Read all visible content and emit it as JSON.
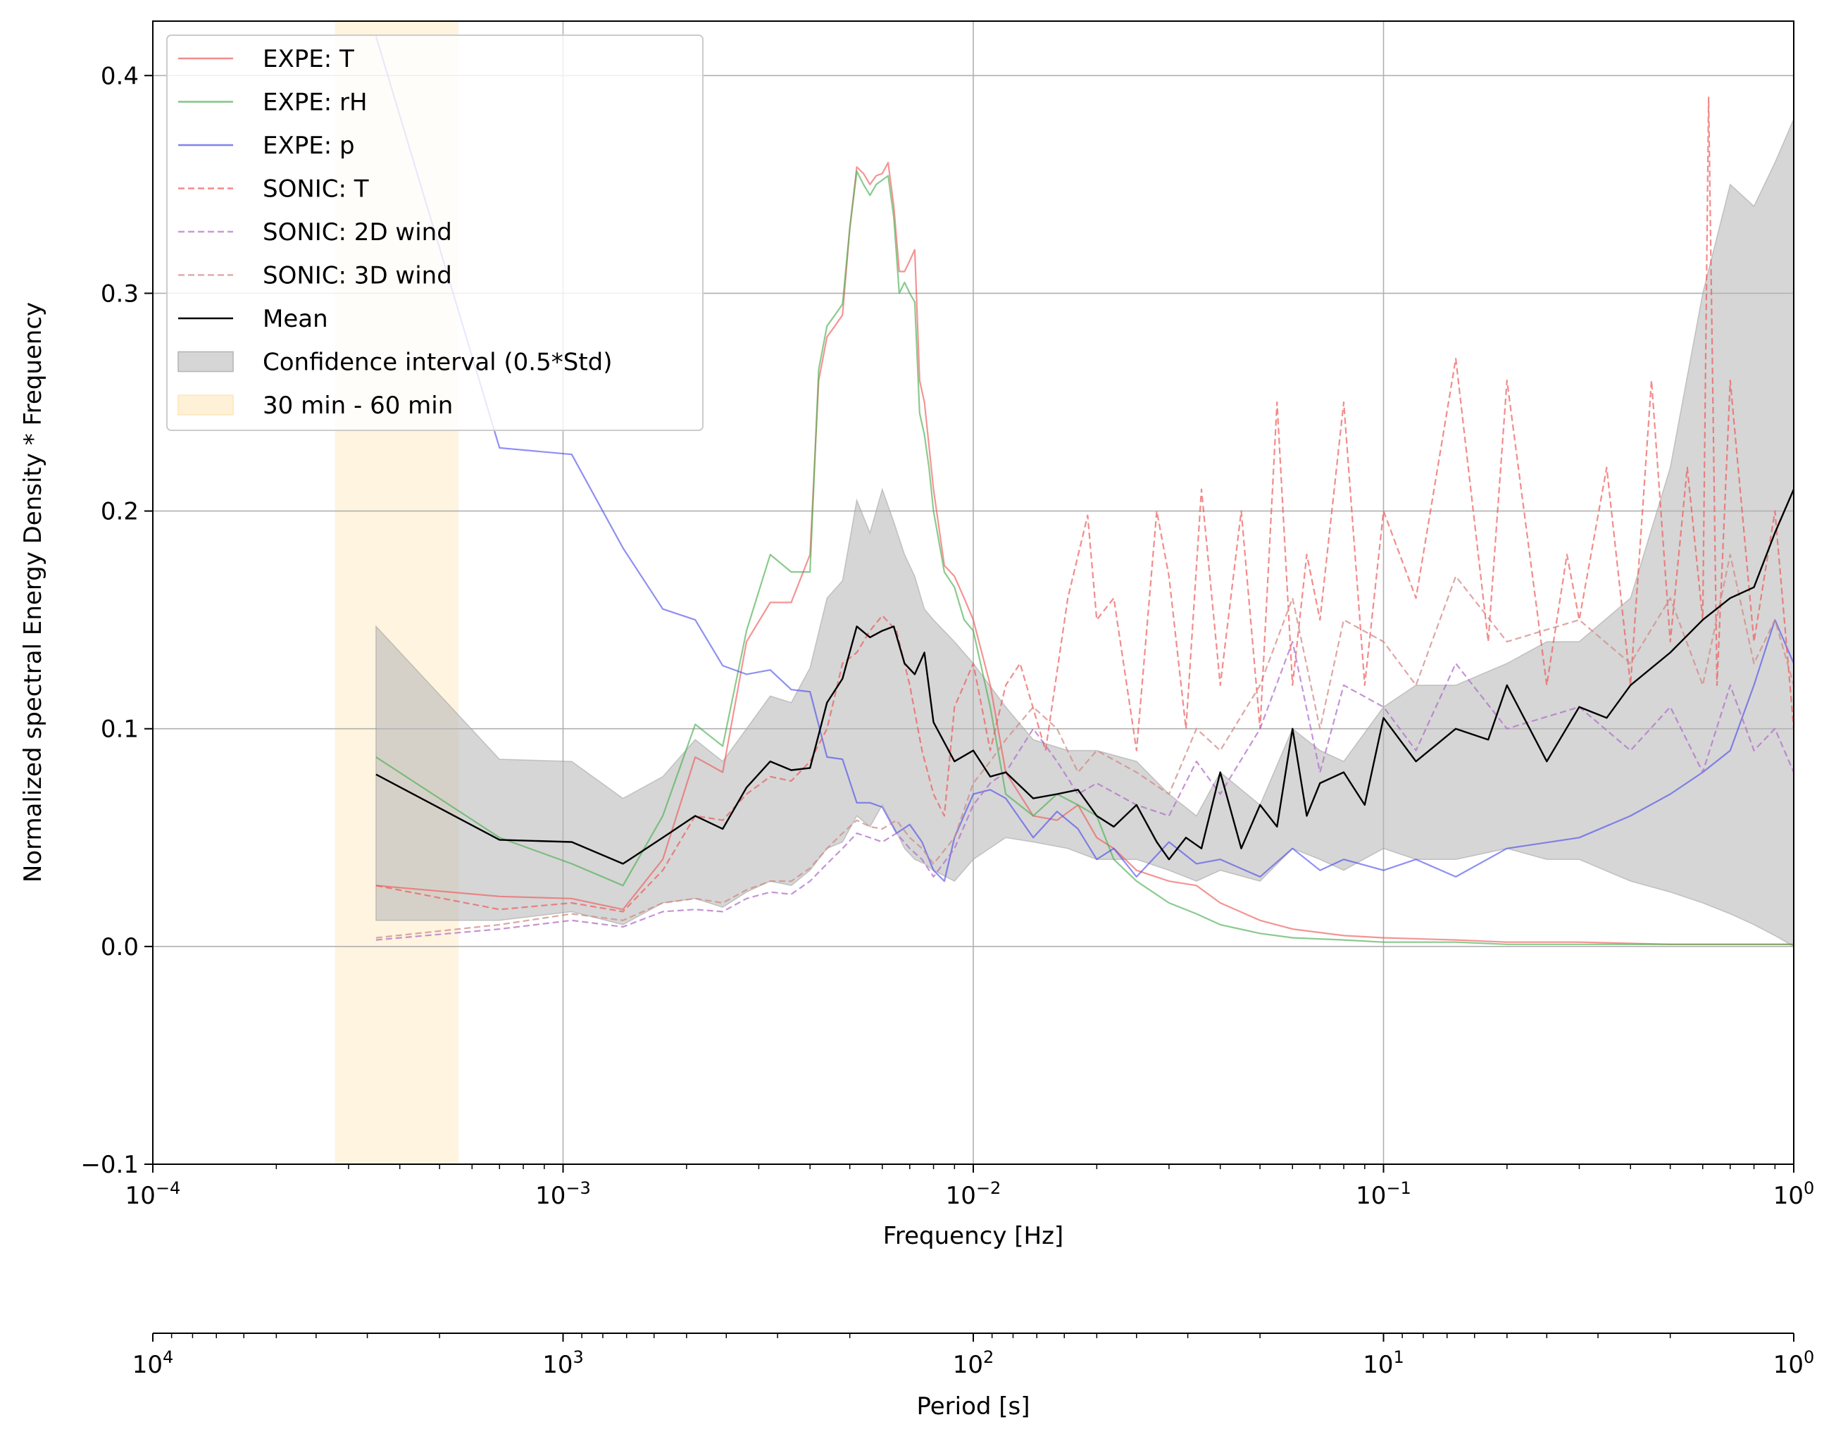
{
  "chart_data": {
    "type": "line",
    "xlabel": "Frequency [Hz]",
    "ylabel": "Normalized spectral Energy Density * Frequency",
    "x_scale": "log",
    "xlim": [
      0.0001,
      1
    ],
    "ylim": [
      -0.1,
      0.425
    ],
    "grid": true,
    "legend_position": "top-left",
    "x_ticks": [
      {
        "value": 0.0001,
        "base": "10",
        "exp": "−4"
      },
      {
        "value": 0.001,
        "base": "10",
        "exp": "−3"
      },
      {
        "value": 0.01,
        "base": "10",
        "exp": "−2"
      },
      {
        "value": 0.1,
        "base": "10",
        "exp": "−1"
      },
      {
        "value": 1,
        "base": "10",
        "exp": "0"
      }
    ],
    "y_ticks": [
      {
        "value": -0.1,
        "label": "−0.1"
      },
      {
        "value": 0.0,
        "label": "0.0"
      },
      {
        "value": 0.1,
        "label": "0.1"
      },
      {
        "value": 0.2,
        "label": "0.2"
      },
      {
        "value": 0.3,
        "label": "0.3"
      },
      {
        "value": 0.4,
        "label": "0.4"
      }
    ],
    "secondary_axis": {
      "label": "Period [s]",
      "scale": "log",
      "ticks": [
        {
          "value": 10000,
          "base": "10",
          "exp": "4"
        },
        {
          "value": 1000,
          "base": "10",
          "exp": "3"
        },
        {
          "value": 100,
          "base": "10",
          "exp": "2"
        },
        {
          "value": 10,
          "base": "10",
          "exp": "1"
        },
        {
          "value": 1,
          "base": "10",
          "exp": "0"
        }
      ]
    },
    "shaded_band": {
      "name": "30 min - 60 min",
      "x_range": [
        0.000278,
        0.000556
      ],
      "color": "#fde6b8"
    },
    "confidence_band": {
      "name": "Confidence interval (0.5*Std)",
      "color": "#b4b4b4",
      "x": [
        0.00035,
        0.0007,
        0.00105,
        0.0014,
        0.00175,
        0.0021,
        0.00245,
        0.0028,
        0.0032,
        0.0036,
        0.004,
        0.0044,
        0.0048,
        0.0052,
        0.0056,
        0.006,
        0.0064,
        0.0068,
        0.0072,
        0.0076,
        0.008,
        0.009,
        0.01,
        0.012,
        0.014,
        0.017,
        0.02,
        0.025,
        0.03,
        0.035,
        0.04,
        0.05,
        0.06,
        0.07,
        0.08,
        0.1,
        0.12,
        0.15,
        0.2,
        0.25,
        0.3,
        0.4,
        0.5,
        0.6,
        0.7,
        0.8,
        0.9,
        1.0
      ],
      "upper": [
        0.147,
        0.086,
        0.085,
        0.068,
        0.078,
        0.095,
        0.085,
        0.1,
        0.115,
        0.112,
        0.128,
        0.16,
        0.168,
        0.205,
        0.19,
        0.21,
        0.195,
        0.18,
        0.17,
        0.155,
        0.15,
        0.14,
        0.13,
        0.11,
        0.095,
        0.09,
        0.09,
        0.085,
        0.07,
        0.06,
        0.08,
        0.065,
        0.1,
        0.09,
        0.085,
        0.11,
        0.12,
        0.12,
        0.13,
        0.14,
        0.14,
        0.16,
        0.22,
        0.3,
        0.35,
        0.34,
        0.36,
        0.38
      ],
      "lower": [
        0.012,
        0.012,
        0.016,
        0.01,
        0.02,
        0.022,
        0.018,
        0.025,
        0.03,
        0.028,
        0.035,
        0.045,
        0.048,
        0.06,
        0.055,
        0.065,
        0.055,
        0.045,
        0.04,
        0.038,
        0.035,
        0.03,
        0.04,
        0.05,
        0.048,
        0.045,
        0.04,
        0.04,
        0.035,
        0.03,
        0.035,
        0.03,
        0.045,
        0.04,
        0.035,
        0.045,
        0.04,
        0.04,
        0.045,
        0.04,
        0.04,
        0.03,
        0.025,
        0.02,
        0.015,
        0.01,
        0.005,
        0.0
      ]
    },
    "series": [
      {
        "name": "EXPE: T",
        "color": "#ee5a5a",
        "dash": false,
        "opacity": 0.65,
        "width": 2.2,
        "x": [
          0.00035,
          0.0007,
          0.00105,
          0.0014,
          0.00175,
          0.0021,
          0.00245,
          0.0028,
          0.0032,
          0.0036,
          0.004,
          0.0042,
          0.0044,
          0.0046,
          0.0048,
          0.005,
          0.0052,
          0.0054,
          0.0056,
          0.0058,
          0.006,
          0.0062,
          0.0064,
          0.0066,
          0.0068,
          0.007,
          0.0072,
          0.0074,
          0.0076,
          0.0078,
          0.008,
          0.0085,
          0.009,
          0.0095,
          0.01,
          0.011,
          0.012,
          0.014,
          0.016,
          0.018,
          0.02,
          0.022,
          0.025,
          0.03,
          0.035,
          0.04,
          0.05,
          0.06,
          0.08,
          0.1,
          0.15,
          0.2,
          0.3,
          0.5,
          0.7,
          1.0
        ],
        "y": [
          0.028,
          0.023,
          0.022,
          0.017,
          0.04,
          0.087,
          0.08,
          0.14,
          0.158,
          0.158,
          0.18,
          0.26,
          0.28,
          0.285,
          0.29,
          0.33,
          0.358,
          0.355,
          0.35,
          0.354,
          0.355,
          0.36,
          0.34,
          0.31,
          0.31,
          0.315,
          0.32,
          0.26,
          0.25,
          0.23,
          0.21,
          0.175,
          0.17,
          0.16,
          0.15,
          0.12,
          0.08,
          0.06,
          0.058,
          0.065,
          0.05,
          0.045,
          0.035,
          0.03,
          0.028,
          0.02,
          0.012,
          0.008,
          0.005,
          0.004,
          0.003,
          0.002,
          0.002,
          0.001,
          0.001,
          0.001
        ]
      },
      {
        "name": "EXPE: rH",
        "color": "#4caf50",
        "dash": false,
        "opacity": 0.65,
        "width": 2.2,
        "x": [
          0.00035,
          0.0007,
          0.00105,
          0.0014,
          0.00175,
          0.0021,
          0.00245,
          0.0028,
          0.0032,
          0.0036,
          0.004,
          0.0042,
          0.0044,
          0.0046,
          0.0048,
          0.005,
          0.0052,
          0.0054,
          0.0056,
          0.0058,
          0.006,
          0.0062,
          0.0064,
          0.0066,
          0.0068,
          0.007,
          0.0072,
          0.0074,
          0.0076,
          0.0078,
          0.008,
          0.0085,
          0.009,
          0.0095,
          0.01,
          0.011,
          0.012,
          0.014,
          0.016,
          0.018,
          0.02,
          0.022,
          0.025,
          0.03,
          0.035,
          0.04,
          0.05,
          0.06,
          0.08,
          0.1,
          0.15,
          0.2,
          0.3,
          0.5,
          0.7,
          1.0
        ],
        "y": [
          0.087,
          0.05,
          0.038,
          0.028,
          0.06,
          0.102,
          0.092,
          0.145,
          0.18,
          0.172,
          0.172,
          0.265,
          0.285,
          0.29,
          0.295,
          0.33,
          0.356,
          0.35,
          0.345,
          0.35,
          0.352,
          0.354,
          0.335,
          0.3,
          0.305,
          0.3,
          0.296,
          0.245,
          0.235,
          0.22,
          0.2,
          0.172,
          0.165,
          0.15,
          0.145,
          0.11,
          0.07,
          0.06,
          0.07,
          0.065,
          0.06,
          0.04,
          0.03,
          0.02,
          0.015,
          0.01,
          0.006,
          0.004,
          0.003,
          0.002,
          0.002,
          0.001,
          0.001,
          0.001,
          0.001,
          0.001
        ]
      },
      {
        "name": "EXPE: p",
        "color": "#4b4bee",
        "dash": false,
        "opacity": 0.62,
        "width": 2.2,
        "x": [
          0.00035,
          0.0007,
          0.00105,
          0.0014,
          0.00175,
          0.0021,
          0.00245,
          0.0028,
          0.0032,
          0.0036,
          0.004,
          0.0044,
          0.0048,
          0.0052,
          0.0056,
          0.006,
          0.0065,
          0.007,
          0.0075,
          0.008,
          0.0085,
          0.009,
          0.01,
          0.011,
          0.012,
          0.014,
          0.016,
          0.018,
          0.02,
          0.022,
          0.025,
          0.03,
          0.035,
          0.04,
          0.05,
          0.06,
          0.07,
          0.08,
          0.1,
          0.12,
          0.15,
          0.2,
          0.3,
          0.4,
          0.5,
          0.6,
          0.7,
          0.8,
          0.9,
          1.0
        ],
        "y": [
          0.418,
          0.229,
          0.226,
          0.183,
          0.155,
          0.15,
          0.129,
          0.125,
          0.127,
          0.118,
          0.117,
          0.087,
          0.086,
          0.066,
          0.066,
          0.064,
          0.052,
          0.056,
          0.048,
          0.035,
          0.03,
          0.05,
          0.07,
          0.072,
          0.068,
          0.05,
          0.062,
          0.054,
          0.04,
          0.045,
          0.032,
          0.048,
          0.038,
          0.04,
          0.032,
          0.045,
          0.035,
          0.04,
          0.035,
          0.04,
          0.032,
          0.045,
          0.05,
          0.06,
          0.07,
          0.08,
          0.09,
          0.12,
          0.15,
          0.13
        ]
      },
      {
        "name": "SONIC: T",
        "color": "#ee5a5a",
        "dash": true,
        "opacity": 0.7,
        "width": 2.2,
        "x": [
          0.00035,
          0.0007,
          0.00105,
          0.0014,
          0.00175,
          0.0021,
          0.00245,
          0.0028,
          0.0032,
          0.0036,
          0.004,
          0.0044,
          0.0048,
          0.0052,
          0.0056,
          0.006,
          0.0065,
          0.007,
          0.0075,
          0.008,
          0.0085,
          0.009,
          0.01,
          0.011,
          0.012,
          0.013,
          0.015,
          0.017,
          0.019,
          0.02,
          0.022,
          0.025,
          0.028,
          0.03,
          0.033,
          0.036,
          0.04,
          0.045,
          0.05,
          0.055,
          0.06,
          0.065,
          0.07,
          0.08,
          0.09,
          0.1,
          0.12,
          0.15,
          0.18,
          0.2,
          0.25,
          0.28,
          0.3,
          0.35,
          0.4,
          0.45,
          0.5,
          0.55,
          0.6,
          0.62,
          0.65,
          0.7,
          0.8,
          0.9,
          1.0
        ],
        "y": [
          0.028,
          0.017,
          0.02,
          0.016,
          0.035,
          0.06,
          0.058,
          0.07,
          0.078,
          0.076,
          0.085,
          0.1,
          0.13,
          0.135,
          0.145,
          0.152,
          0.145,
          0.12,
          0.09,
          0.07,
          0.06,
          0.11,
          0.13,
          0.09,
          0.12,
          0.13,
          0.09,
          0.16,
          0.198,
          0.15,
          0.16,
          0.09,
          0.2,
          0.17,
          0.1,
          0.21,
          0.12,
          0.2,
          0.1,
          0.25,
          0.12,
          0.18,
          0.15,
          0.25,
          0.12,
          0.2,
          0.16,
          0.27,
          0.14,
          0.26,
          0.12,
          0.18,
          0.15,
          0.22,
          0.12,
          0.26,
          0.14,
          0.22,
          0.15,
          0.39,
          0.12,
          0.26,
          0.14,
          0.2,
          0.1
        ]
      },
      {
        "name": "SONIC: 2D wind",
        "color": "#b070c8",
        "dash": true,
        "opacity": 0.75,
        "width": 2.2,
        "x": [
          0.00035,
          0.0007,
          0.00105,
          0.0014,
          0.00175,
          0.0021,
          0.00245,
          0.0028,
          0.0032,
          0.0036,
          0.004,
          0.0044,
          0.0048,
          0.0052,
          0.0056,
          0.006,
          0.0065,
          0.007,
          0.0075,
          0.008,
          0.009,
          0.01,
          0.011,
          0.012,
          0.014,
          0.016,
          0.018,
          0.02,
          0.025,
          0.03,
          0.035,
          0.04,
          0.05,
          0.06,
          0.07,
          0.08,
          0.1,
          0.12,
          0.15,
          0.2,
          0.3,
          0.4,
          0.5,
          0.6,
          0.7,
          0.8,
          0.9,
          1.0
        ],
        "y": [
          0.003,
          0.008,
          0.012,
          0.009,
          0.016,
          0.017,
          0.016,
          0.022,
          0.025,
          0.024,
          0.03,
          0.038,
          0.045,
          0.052,
          0.05,
          0.048,
          0.052,
          0.045,
          0.04,
          0.032,
          0.045,
          0.065,
          0.075,
          0.08,
          0.1,
          0.085,
          0.07,
          0.075,
          0.065,
          0.06,
          0.085,
          0.07,
          0.1,
          0.14,
          0.08,
          0.12,
          0.11,
          0.09,
          0.13,
          0.1,
          0.11,
          0.09,
          0.11,
          0.08,
          0.12,
          0.09,
          0.1,
          0.08
        ]
      },
      {
        "name": "SONIC: 3D wind",
        "color": "#d08a86",
        "dash": true,
        "opacity": 0.75,
        "width": 2.2,
        "x": [
          0.00035,
          0.0007,
          0.00105,
          0.0014,
          0.00175,
          0.0021,
          0.00245,
          0.0028,
          0.0032,
          0.0036,
          0.004,
          0.0044,
          0.0048,
          0.0052,
          0.0056,
          0.006,
          0.0065,
          0.007,
          0.0075,
          0.008,
          0.009,
          0.01,
          0.011,
          0.012,
          0.014,
          0.016,
          0.018,
          0.02,
          0.025,
          0.03,
          0.035,
          0.04,
          0.05,
          0.06,
          0.07,
          0.08,
          0.1,
          0.12,
          0.15,
          0.2,
          0.3,
          0.4,
          0.5,
          0.6,
          0.7,
          0.8,
          0.9,
          1.0
        ],
        "y": [
          0.004,
          0.01,
          0.015,
          0.012,
          0.02,
          0.022,
          0.02,
          0.026,
          0.03,
          0.03,
          0.036,
          0.045,
          0.052,
          0.058,
          0.055,
          0.054,
          0.058,
          0.05,
          0.045,
          0.038,
          0.05,
          0.075,
          0.085,
          0.095,
          0.11,
          0.1,
          0.08,
          0.09,
          0.08,
          0.07,
          0.1,
          0.09,
          0.12,
          0.16,
          0.1,
          0.15,
          0.14,
          0.12,
          0.17,
          0.14,
          0.15,
          0.13,
          0.16,
          0.12,
          0.18,
          0.13,
          0.15,
          0.12
        ]
      },
      {
        "name": "Mean",
        "color": "#000000",
        "dash": false,
        "opacity": 1.0,
        "width": 2.4,
        "x": [
          0.00035,
          0.0007,
          0.00105,
          0.0014,
          0.00175,
          0.0021,
          0.00245,
          0.0028,
          0.0032,
          0.0036,
          0.004,
          0.0044,
          0.0048,
          0.0052,
          0.0056,
          0.006,
          0.0064,
          0.0068,
          0.0072,
          0.0076,
          0.008,
          0.009,
          0.01,
          0.011,
          0.012,
          0.014,
          0.016,
          0.018,
          0.02,
          0.022,
          0.025,
          0.028,
          0.03,
          0.033,
          0.036,
          0.04,
          0.045,
          0.05,
          0.055,
          0.06,
          0.065,
          0.07,
          0.08,
          0.09,
          0.1,
          0.12,
          0.15,
          0.18,
          0.2,
          0.25,
          0.3,
          0.35,
          0.4,
          0.5,
          0.6,
          0.7,
          0.8,
          0.9,
          1.0
        ],
        "y": [
          0.079,
          0.049,
          0.048,
          0.038,
          0.05,
          0.06,
          0.054,
          0.073,
          0.085,
          0.081,
          0.082,
          0.112,
          0.123,
          0.147,
          0.142,
          0.145,
          0.147,
          0.13,
          0.125,
          0.135,
          0.103,
          0.085,
          0.09,
          0.078,
          0.08,
          0.068,
          0.07,
          0.072,
          0.06,
          0.055,
          0.065,
          0.048,
          0.04,
          0.05,
          0.045,
          0.08,
          0.045,
          0.065,
          0.055,
          0.1,
          0.06,
          0.075,
          0.08,
          0.065,
          0.105,
          0.085,
          0.1,
          0.095,
          0.12,
          0.085,
          0.11,
          0.105,
          0.12,
          0.135,
          0.15,
          0.16,
          0.165,
          0.19,
          0.21
        ]
      }
    ],
    "legend_entries": [
      {
        "label": "EXPE: T",
        "kind": "line",
        "color": "#ee5a5a",
        "dash": false
      },
      {
        "label": "EXPE: rH",
        "kind": "line",
        "color": "#4caf50",
        "dash": false
      },
      {
        "label": "EXPE: p",
        "kind": "line",
        "color": "#4b4bee",
        "dash": false
      },
      {
        "label": "SONIC: T",
        "kind": "line",
        "color": "#ee5a5a",
        "dash": true
      },
      {
        "label": "SONIC: 2D wind",
        "kind": "line",
        "color": "#b070c8",
        "dash": true
      },
      {
        "label": "SONIC: 3D wind",
        "kind": "line",
        "color": "#d08a86",
        "dash": true
      },
      {
        "label": "Mean",
        "kind": "line",
        "color": "#000000",
        "dash": false
      },
      {
        "label": "Confidence interval (0.5*Std)",
        "kind": "patch",
        "color": "#b4b4b4"
      },
      {
        "label": "30 min - 60 min",
        "kind": "patch",
        "color": "#fde6b8"
      }
    ]
  }
}
